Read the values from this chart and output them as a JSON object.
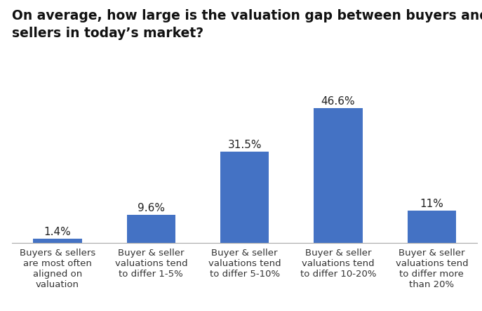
{
  "title_line1": "On average, how large is the valuation gap between buyers and",
  "title_line2": "sellers in today’s market?",
  "categories": [
    "Buyers & sellers\nare most often\naligned on\nvaluation",
    "Buyer & seller\nvaluations tend\nto differ 1-5%",
    "Buyer & seller\nvaluations tend\nto differ 5-10%",
    "Buyer & seller\nvaluations tend\nto differ 10-20%",
    "Buyer & seller\nvaluations tend\nto differ more\nthan 20%"
  ],
  "values": [
    1.4,
    9.6,
    31.5,
    46.6,
    11.0
  ],
  "labels": [
    "1.4%",
    "9.6%",
    "31.5%",
    "46.6%",
    "11%"
  ],
  "bar_color": "#4472c4",
  "background_color": "#ffffff",
  "title_fontsize": 13.5,
  "label_fontsize": 11,
  "tick_fontsize": 9.5,
  "ylim": [
    0,
    54
  ]
}
